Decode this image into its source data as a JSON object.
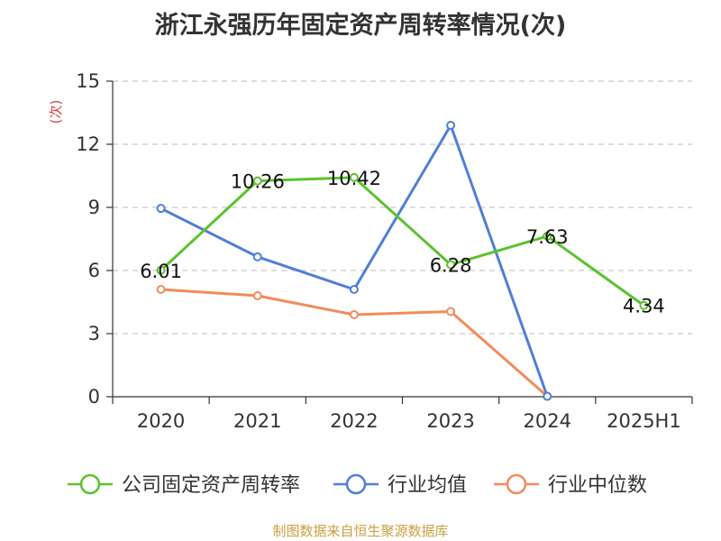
{
  "title": "浙江永强历年固定资产周转率情况(次)",
  "source": "制图数据来自恒生聚源数据库",
  "chart_data": {
    "type": "line",
    "title": "浙江永强历年固定资产周转率情况(次)",
    "ylabel": "(次)",
    "xlabel": "",
    "categories": [
      "2020",
      "2021",
      "2022",
      "2023",
      "2024",
      "2025H1"
    ],
    "ylim": [
      0,
      15
    ],
    "yticks": [
      0,
      3,
      6,
      9,
      12,
      15
    ],
    "grid": true,
    "legend_position": "bottom",
    "series": [
      {
        "name": "公司固定资产周转率",
        "color": "#5cc22e",
        "values": [
          6.01,
          10.26,
          10.42,
          6.28,
          7.63,
          4.34
        ],
        "labels": [
          "6.01",
          "10.26",
          "10.42",
          "6.28",
          "7.63",
          "4.34"
        ]
      },
      {
        "name": "行业均值",
        "color": "#4f7fd8",
        "values": [
          8.95,
          6.65,
          5.1,
          12.9,
          0.02,
          null
        ]
      },
      {
        "name": "行业中位数",
        "color": "#f28c5a",
        "values": [
          5.1,
          4.8,
          3.9,
          4.05,
          0.02,
          null
        ]
      }
    ]
  }
}
